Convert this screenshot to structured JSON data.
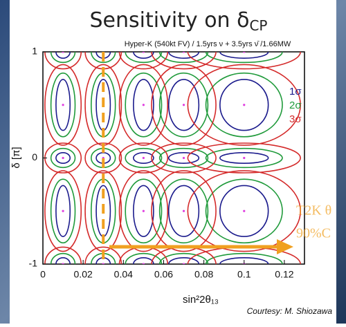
{
  "chart_data": {
    "type": "contour",
    "title": "Sensitivity on δ",
    "title_sub": "CP",
    "subtitle": "Hyper-K (540kt FV) / 1.5yrs ν + 3.5yrs ν̄ /1.66MW",
    "x_label": "sin²2θ₁₃",
    "y_label": "δ [π]",
    "xlim": [
      0,
      0.13
    ],
    "ylim": [
      -1,
      1
    ],
    "xticks": [
      0,
      0.02,
      0.04,
      0.06,
      0.08,
      0.1,
      0.12
    ],
    "yticks": [
      -1,
      0,
      1
    ],
    "x_points": [
      0.01,
      0.03,
      0.05,
      0.07,
      0.1
    ],
    "y_points": [
      -1,
      -0.5,
      0,
      0.5,
      1
    ],
    "point_color": "#e040e0",
    "contours": [
      {
        "name": "1σ",
        "color": "#1a1a8c",
        "dx": [
          0.0035,
          0.0035,
          0.005,
          0.0075,
          0.012
        ],
        "dy": [
          0.06,
          0.24,
          0.05,
          0.24,
          0.06
        ]
      },
      {
        "name": "2σ",
        "color": "#1f9a3a",
        "dx": [
          0.006,
          0.006,
          0.009,
          0.012,
          0.019
        ],
        "dy": [
          0.1,
          0.3,
          0.09,
          0.3,
          0.1
        ]
      },
      {
        "name": "3σ",
        "color": "#d42a2a",
        "dx": [
          0.009,
          0.009,
          0.012,
          0.016,
          0.028
        ],
        "dy": [
          0.16,
          0.38,
          0.14,
          0.38,
          0.16
        ]
      }
    ],
    "t2k_line": 0.03,
    "t2k_color": "#f0a020",
    "annotations": [
      "T2K θ",
      "90%C"
    ],
    "credit": "Courtesy: M. Shiozawa"
  }
}
